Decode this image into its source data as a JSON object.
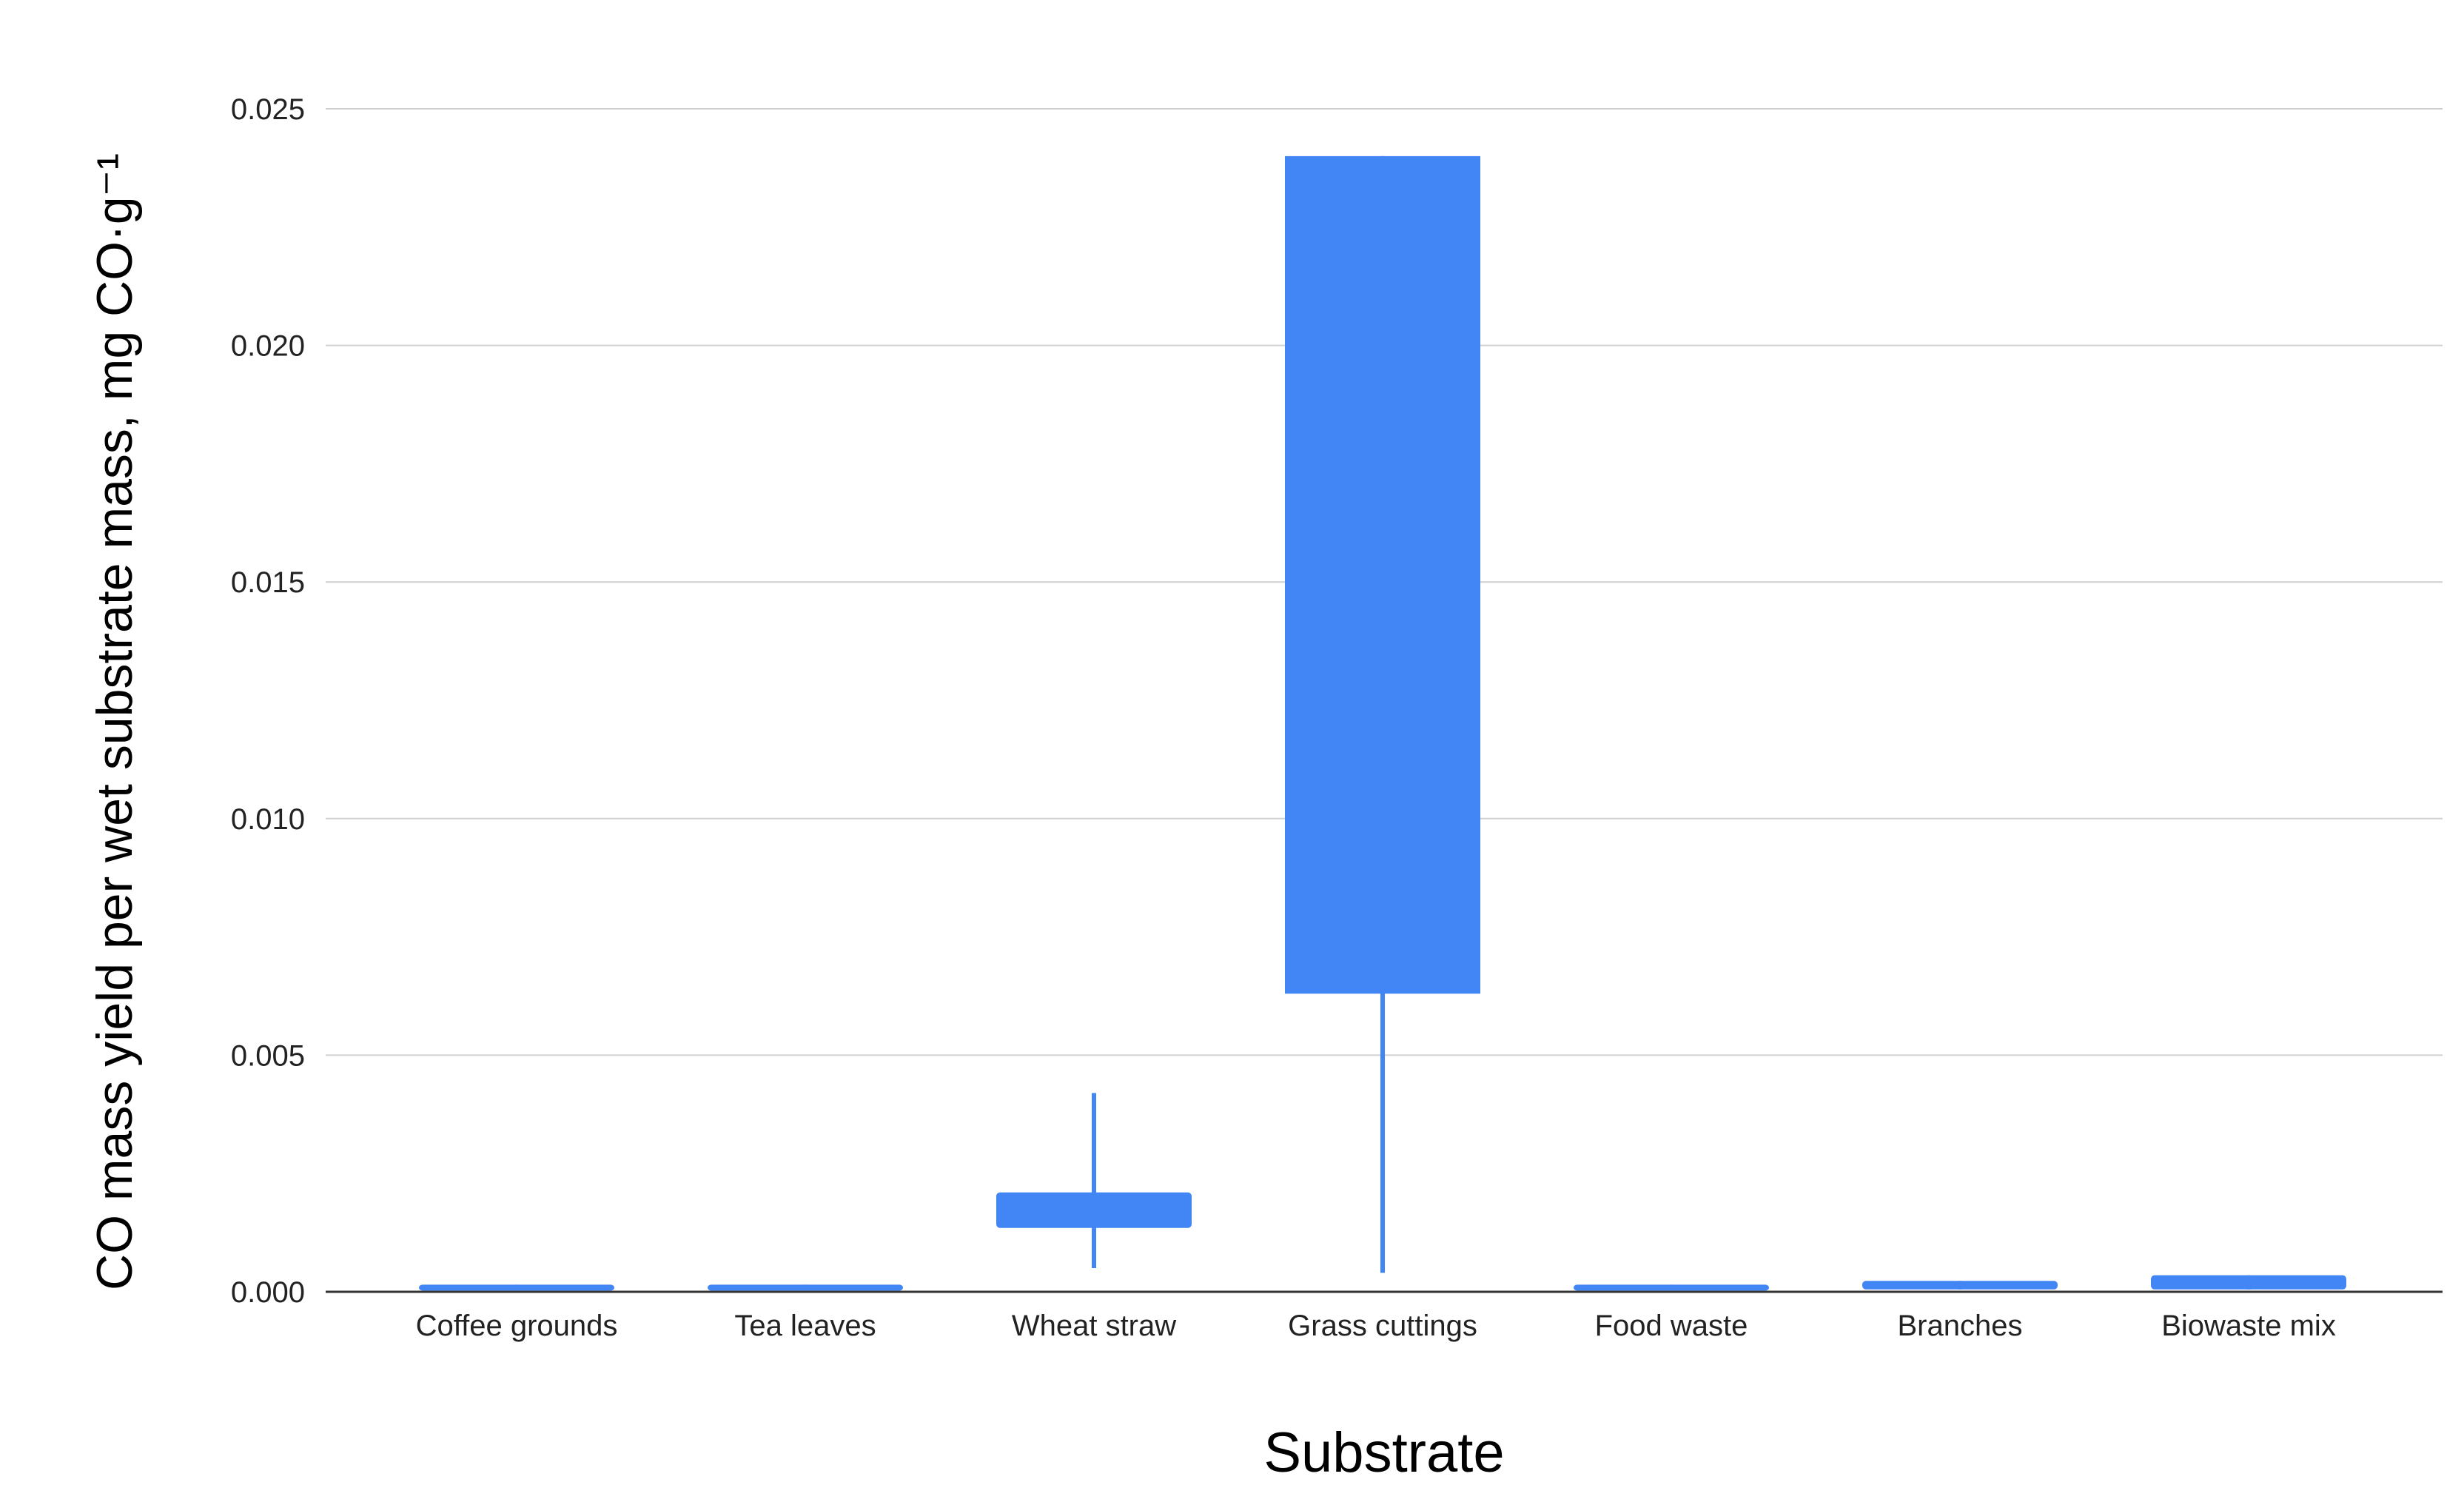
{
  "chart_data": {
    "type": "candlestick",
    "xlabel": "Substrate",
    "ylabel": "CO mass yield per wet substrate mass, mg CO·g⁻¹",
    "ylim": [
      0,
      0.025
    ],
    "yticks": [
      0.0,
      0.005,
      0.01,
      0.015,
      0.02,
      0.025
    ],
    "ytick_labels": [
      "0.000",
      "0.005",
      "0.010",
      "0.015",
      "0.020",
      "0.025"
    ],
    "grid": true,
    "legend": "none",
    "bar_color": "#4285F4",
    "categories": [
      "Coffee grounds",
      "Tea leaves",
      "Wheat straw",
      "Grass cuttings",
      "Food waste",
      "Branches",
      "Biowaste mix"
    ],
    "series": [
      {
        "low": [
          5e-05,
          5e-05,
          0.0005,
          0.0004,
          5e-05,
          5e-05,
          5e-05
        ],
        "box_low": [
          5e-05,
          5e-05,
          0.00135,
          0.0063,
          5e-05,
          5e-05,
          5e-05
        ],
        "box_high": [
          0.00015,
          0.00015,
          0.0021,
          0.024,
          0.00015,
          0.00023,
          0.00035
        ],
        "high": [
          0.00015,
          0.00015,
          0.0042,
          0.024,
          0.00015,
          0.00023,
          0.00035
        ]
      }
    ]
  }
}
